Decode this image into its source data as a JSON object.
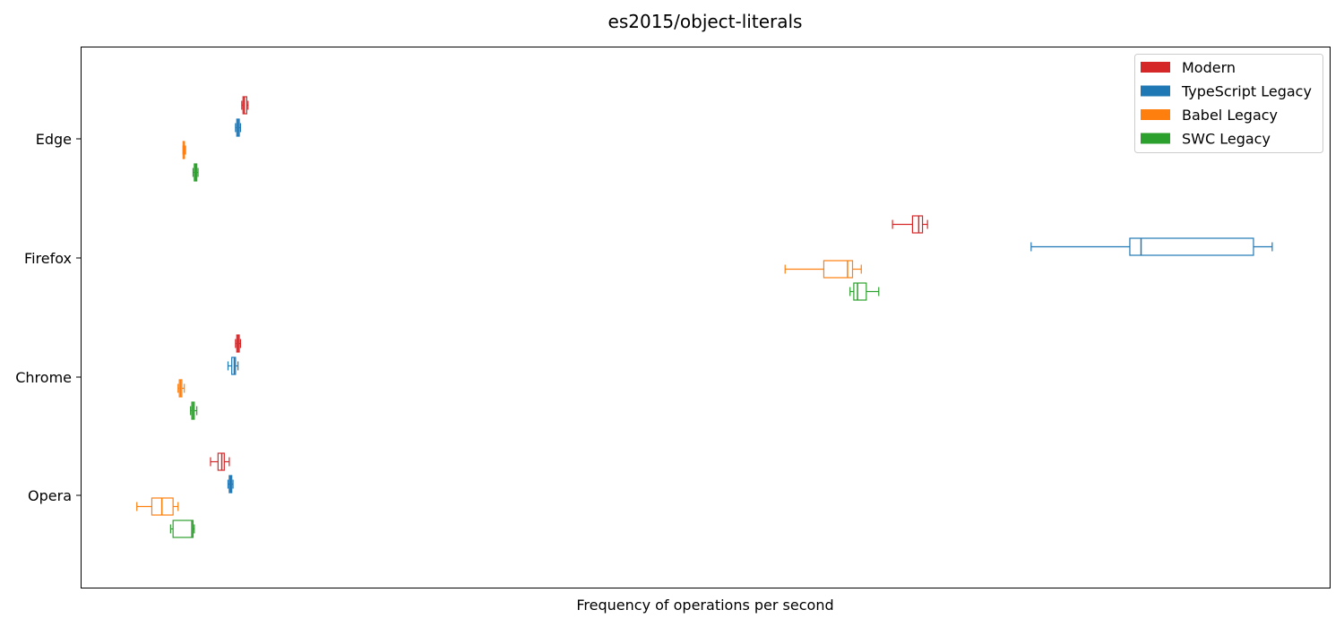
{
  "chart_data": {
    "type": "boxplot",
    "orientation": "horizontal",
    "title": "es2015/object-literals",
    "xlabel": "Frequency of operations per second",
    "ylabel": "",
    "x_ticks_shown": false,
    "grid": false,
    "legend_position": "top-right",
    "categories": [
      "Edge",
      "Firefox",
      "Chrome",
      "Opera"
    ],
    "xlim": [
      0,
      100
    ],
    "series": [
      {
        "name": "Modern",
        "color": "#d62728",
        "boxes": [
          {
            "category": "Edge",
            "whislo": 12.9,
            "q1": 13.0,
            "med": 13.1,
            "q3": 13.3,
            "whishi": 13.4
          },
          {
            "category": "Firefox",
            "whislo": 65.0,
            "q1": 66.6,
            "med": 67.1,
            "q3": 67.4,
            "whishi": 67.8
          },
          {
            "category": "Chrome",
            "whislo": 12.4,
            "q1": 12.5,
            "med": 12.6,
            "q3": 12.7,
            "whishi": 12.8
          },
          {
            "category": "Opera",
            "whislo": 10.4,
            "q1": 11.0,
            "med": 11.3,
            "q3": 11.5,
            "whishi": 11.9
          }
        ]
      },
      {
        "name": "TypeScript Legacy",
        "color": "#1f77b4",
        "boxes": [
          {
            "category": "Edge",
            "whislo": 12.4,
            "q1": 12.5,
            "med": 12.6,
            "q3": 12.7,
            "whishi": 12.8
          },
          {
            "category": "Firefox",
            "whislo": 76.1,
            "q1": 84.0,
            "med": 84.9,
            "q3": 93.9,
            "whishi": 95.4
          },
          {
            "category": "Chrome",
            "whislo": 11.8,
            "q1": 12.1,
            "med": 12.3,
            "q3": 12.4,
            "whishi": 12.6
          },
          {
            "category": "Opera",
            "whislo": 11.8,
            "q1": 11.9,
            "med": 12.0,
            "q3": 12.1,
            "whishi": 12.2
          }
        ]
      },
      {
        "name": "Babel Legacy",
        "color": "#ff7f0e",
        "boxes": [
          {
            "category": "Edge",
            "whislo": 8.2,
            "q1": 8.2,
            "med": 8.3,
            "q3": 8.3,
            "whishi": 8.4
          },
          {
            "category": "Firefox",
            "whislo": 56.4,
            "q1": 59.5,
            "med": 61.4,
            "q3": 61.8,
            "whishi": 62.5
          },
          {
            "category": "Chrome",
            "whislo": 7.8,
            "q1": 7.9,
            "med": 8.0,
            "q3": 8.1,
            "whishi": 8.3
          },
          {
            "category": "Opera",
            "whislo": 4.5,
            "q1": 5.7,
            "med": 6.5,
            "q3": 7.4,
            "whishi": 7.8
          }
        ]
      },
      {
        "name": "SWC Legacy",
        "color": "#2ca02c",
        "boxes": [
          {
            "category": "Edge",
            "whislo": 9.0,
            "q1": 9.1,
            "med": 9.2,
            "q3": 9.3,
            "whishi": 9.4
          },
          {
            "category": "Firefox",
            "whislo": 61.6,
            "q1": 61.9,
            "med": 62.2,
            "q3": 62.9,
            "whishi": 63.9
          },
          {
            "category": "Chrome",
            "whislo": 8.8,
            "q1": 8.9,
            "med": 9.0,
            "q3": 9.1,
            "whishi": 9.3
          },
          {
            "category": "Opera",
            "whislo": 7.2,
            "q1": 7.4,
            "med": 8.9,
            "q3": 9.0,
            "whishi": 9.1
          }
        ]
      }
    ]
  }
}
